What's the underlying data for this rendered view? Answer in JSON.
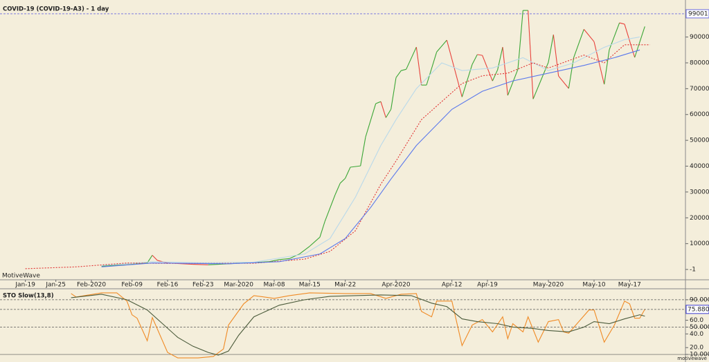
{
  "chart_data": [
    {
      "type": "line",
      "title": "COVID-19 (COVID-19-A3) - 1 day",
      "watermark": "MotiveWave",
      "xlim": [
        -5,
        130
      ],
      "ylim": [
        -4000,
        103000
      ],
      "xticks": [
        {
          "value": 0,
          "label": "Jan-19"
        },
        {
          "value": 6,
          "label": "Jan-25"
        },
        {
          "value": 13,
          "label": "Feb-2020"
        },
        {
          "value": 21,
          "label": "Feb-09"
        },
        {
          "value": 28,
          "label": "Feb-16"
        },
        {
          "value": 35,
          "label": "Feb-23"
        },
        {
          "value": 42,
          "label": "Mar-2020"
        },
        {
          "value": 49,
          "label": "Mar-08"
        },
        {
          "value": 56,
          "label": "Mar-15"
        },
        {
          "value": 63,
          "label": "Mar-22"
        },
        {
          "value": 73,
          "label": "Apr-2020"
        },
        {
          "value": 84,
          "label": "Apr-12"
        },
        {
          "value": 91,
          "label": "Apr-19"
        },
        {
          "value": 103,
          "label": "May-2020"
        },
        {
          "value": 112,
          "label": "May-10"
        },
        {
          "value": 119,
          "label": "May-17"
        }
      ],
      "yticks": [
        -1,
        10000,
        20000,
        30000,
        40000,
        50000,
        60000,
        70000,
        80000,
        90000
      ],
      "high_level": 99001,
      "series": [
        {
          "up_color": "#3aa635",
          "down_color": "#e8413b",
          "x": [
            15,
            20,
            24,
            25,
            26,
            28,
            33,
            36,
            40,
            44,
            48,
            50,
            52,
            54,
            56,
            58,
            59,
            61,
            62,
            63,
            64,
            66,
            67,
            69,
            70,
            71,
            72,
            73,
            74,
            75,
            77,
            78,
            79,
            81,
            83,
            86,
            88,
            89,
            90,
            92,
            93,
            94,
            95,
            97,
            98,
            99,
            100,
            103,
            104,
            105,
            107,
            108,
            110,
            112,
            114,
            115,
            117,
            118,
            120,
            122
          ],
          "values": [
            1300,
            1800,
            2500,
            5500,
            3500,
            2500,
            2000,
            1800,
            2200,
            2600,
            3000,
            3800,
            4200,
            6000,
            9000,
            12500,
            18700,
            28900,
            33400,
            35300,
            39600,
            40100,
            51300,
            64200,
            65000,
            58800,
            62000,
            74300,
            77000,
            77500,
            86100,
            71400,
            71400,
            84200,
            88800,
            66800,
            79400,
            83200,
            82900,
            73000,
            77300,
            86100,
            67400,
            77500,
            100300,
            100300,
            66000,
            80200,
            90900,
            74900,
            70100,
            82100,
            93000,
            88200,
            71700,
            85100,
            95500,
            95000,
            82100,
            94100
          ]
        },
        {
          "color": "#b9d9ea",
          "x": [
            15,
            25,
            35,
            45,
            55,
            60,
            65,
            70,
            73,
            77,
            82,
            86,
            92,
            98,
            103,
            108,
            114,
            118,
            121
          ],
          "values": [
            1500,
            3000,
            2600,
            2800,
            6000,
            12000,
            28000,
            48000,
            58000,
            70000,
            80000,
            77000,
            78000,
            82000,
            77000,
            80000,
            86000,
            89000,
            90000
          ]
        },
        {
          "color": "#e03030",
          "dashed": true,
          "x": [
            0,
            10,
            20,
            30,
            45,
            55,
            60,
            65,
            70,
            73,
            78,
            82,
            86,
            90,
            95,
            100,
            103,
            110,
            114,
            118,
            123
          ],
          "values": [
            300,
            1000,
            2500,
            2300,
            2400,
            4000,
            7000,
            15000,
            33000,
            42000,
            58000,
            65000,
            72000,
            75000,
            76000,
            80000,
            78000,
            83000,
            80000,
            87000,
            87000
          ]
        },
        {
          "color": "#5a78ec",
          "x": [
            15,
            25,
            40,
            50,
            58,
            63,
            68,
            72,
            77,
            84,
            90,
            96,
            103,
            110,
            116,
            121
          ],
          "values": [
            1000,
            2500,
            2200,
            3000,
            6000,
            12000,
            24000,
            35000,
            48000,
            62000,
            69000,
            73000,
            76000,
            79000,
            82000,
            85000
          ]
        }
      ]
    },
    {
      "type": "line",
      "title": "STO Slow(13,8)",
      "footer": "motivewave",
      "xlim": [
        -5,
        130
      ],
      "ylim": [
        3,
        104
      ],
      "yticks": [
        {
          "value": 10,
          "label": "10.0000"
        },
        {
          "value": 20,
          "label": "20.0"
        },
        {
          "value": 40,
          "label": "40.0"
        },
        {
          "value": 50,
          "label": "50.0000"
        },
        {
          "value": 60,
          "label": "60.0"
        },
        {
          "value": 90,
          "label": "90.0000"
        }
      ],
      "levels": [
        90,
        50,
        10
      ],
      "last_value": 75.8802,
      "series": [
        {
          "color": "#f08a24",
          "x": [
            9,
            10,
            15,
            18,
            20,
            21,
            22,
            24,
            25,
            28,
            30,
            34,
            37,
            39,
            40,
            43,
            45,
            49,
            52,
            56,
            63,
            68,
            71,
            74,
            77,
            78,
            80,
            81,
            84,
            86,
            88,
            90,
            92,
            94,
            95,
            96,
            98,
            99,
            101,
            103,
            105,
            106,
            107,
            109,
            111,
            112,
            114,
            116,
            118,
            119,
            120,
            121,
            122
          ],
          "values": [
            99,
            94,
            100,
            100,
            88,
            68,
            63,
            30,
            64,
            13,
            5,
            5,
            7,
            18,
            53,
            84,
            96,
            92,
            96,
            100,
            99,
            99,
            92,
            98,
            99,
            73,
            65,
            88,
            88,
            23,
            53,
            61,
            43,
            65,
            33,
            55,
            43,
            65,
            28,
            58,
            61,
            43,
            41,
            58,
            75,
            75,
            28,
            53,
            88,
            84,
            63,
            63,
            76
          ]
        },
        {
          "color": "#4a5a3a",
          "x": [
            9,
            15,
            20,
            24,
            27,
            30,
            33,
            36,
            38,
            40,
            42,
            45,
            50,
            55,
            60,
            70,
            76,
            80,
            83,
            86,
            89,
            93,
            96,
            100,
            103,
            107,
            110,
            112,
            115,
            118,
            121,
            122
          ],
          "values": [
            93,
            98,
            90,
            75,
            55,
            35,
            22,
            13,
            9,
            15,
            38,
            65,
            82,
            90,
            95,
            97,
            96,
            85,
            80,
            62,
            58,
            55,
            50,
            48,
            45,
            43,
            50,
            58,
            55,
            62,
            68,
            66
          ]
        }
      ]
    }
  ]
}
